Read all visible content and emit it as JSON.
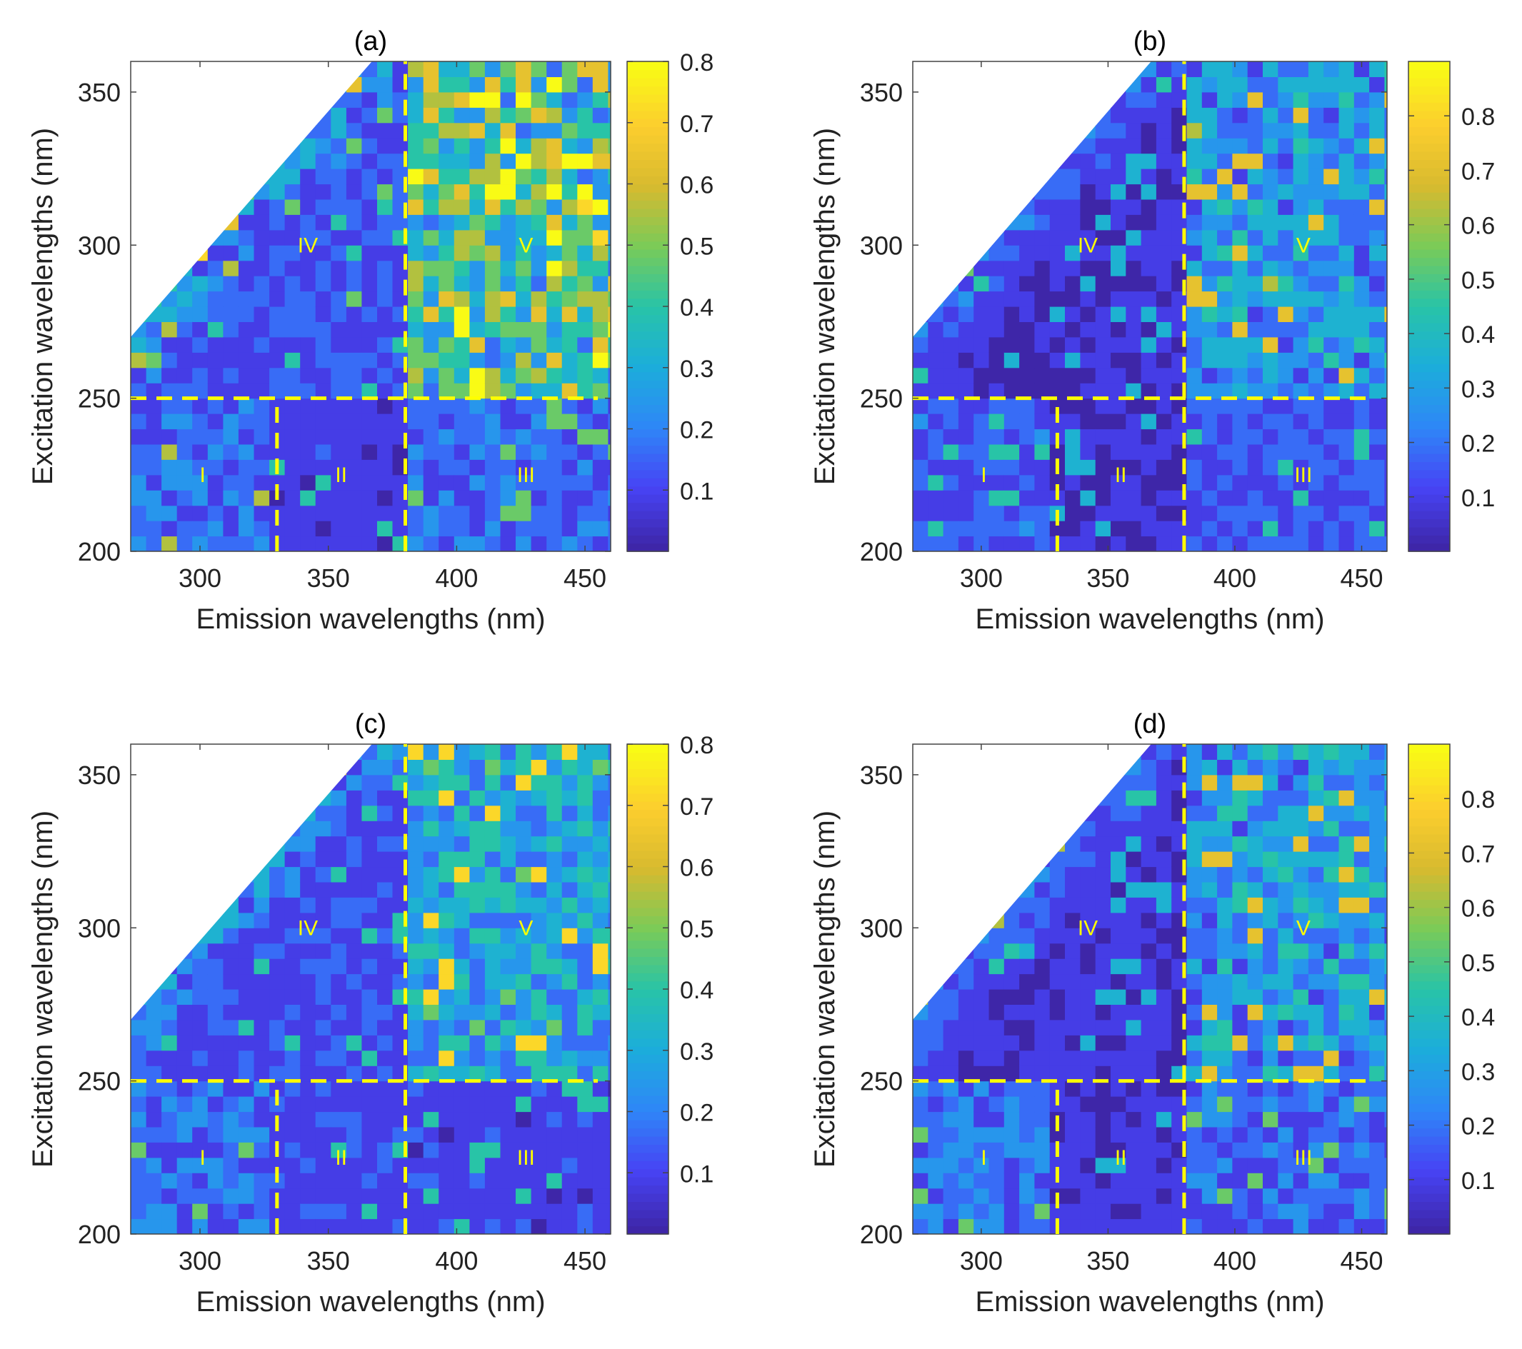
{
  "figure": {
    "x_axis_label": "Emission wavelengths (nm)",
    "y_axis_label": "Excitation wavelengths (nm)",
    "xlim": [
      273,
      460
    ],
    "ylim": [
      200,
      360
    ],
    "x_ticks": [
      300,
      350,
      400,
      450
    ],
    "y_ticks": [
      200,
      250,
      300,
      350
    ],
    "boundary_color": "#FFFF00",
    "contour_line_color": "#000000",
    "colormap": [
      "#3E26A8",
      "#4743F5",
      "#2E87F7",
      "#1CADDB",
      "#28C4A7",
      "#7ACB58",
      "#D7BA2F",
      "#FCCE2E",
      "#F9FB15"
    ]
  },
  "chart_data": [
    {
      "panel": "a",
      "type": "heatmap",
      "title": "(a)",
      "xlabel": "Emission wavelengths (nm)",
      "ylabel": "Excitation wavelengths (nm)",
      "xlim": [
        273,
        460
      ],
      "ylim": [
        200,
        360
      ],
      "colorbar_ticks": [
        "0.1",
        "0.2",
        "0.3",
        "0.4",
        "0.5",
        "0.6",
        "0.7",
        "0.8"
      ],
      "colorbar_range": [
        0,
        0.8
      ],
      "region_labels": [
        {
          "label": "I",
          "em": 301,
          "ex": 225
        },
        {
          "label": "II",
          "em": 355,
          "ex": 225
        },
        {
          "label": "III",
          "em": 427,
          "ex": 225
        },
        {
          "label": "IV",
          "em": 342,
          "ex": 300
        },
        {
          "label": "V",
          "em": 427,
          "ex": 300
        }
      ],
      "boundaries": {
        "ex_split": 250,
        "em_splits_lower": [
          330,
          380
        ],
        "em_split_upper": 380
      },
      "region_mean_intensity": {
        "I": 0.18,
        "II": 0.08,
        "III": 0.16,
        "IV": 0.12,
        "V": 0.45
      }
    },
    {
      "panel": "b",
      "type": "heatmap",
      "title": "(b)",
      "xlabel": "Emission wavelengths (nm)",
      "ylabel": "Excitation wavelengths (nm)",
      "xlim": [
        273,
        460
      ],
      "ylim": [
        200,
        360
      ],
      "colorbar_ticks": [
        "0.1",
        "0.2",
        "0.3",
        "0.4",
        "0.5",
        "0.6",
        "0.7",
        "0.8"
      ],
      "colorbar_range": [
        0,
        0.9
      ],
      "region_labels": [
        {
          "label": "I",
          "em": 301,
          "ex": 225
        },
        {
          "label": "II",
          "em": 355,
          "ex": 225
        },
        {
          "label": "III",
          "em": 427,
          "ex": 225
        },
        {
          "label": "IV",
          "em": 342,
          "ex": 300
        },
        {
          "label": "V",
          "em": 427,
          "ex": 300
        }
      ],
      "boundaries": {
        "ex_split": 250,
        "em_splits_lower": [
          330,
          380
        ],
        "em_split_upper": 380
      },
      "region_mean_intensity": {
        "I": 0.15,
        "II": 0.05,
        "III": 0.14,
        "IV": 0.05,
        "V": 0.28
      }
    },
    {
      "panel": "c",
      "type": "heatmap",
      "title": "(c)",
      "xlabel": "Emission wavelengths (nm)",
      "ylabel": "Excitation wavelengths (nm)",
      "xlim": [
        273,
        460
      ],
      "ylim": [
        200,
        360
      ],
      "colorbar_ticks": [
        "0.1",
        "0.2",
        "0.3",
        "0.4",
        "0.5",
        "0.6",
        "0.7",
        "0.8"
      ],
      "colorbar_range": [
        0,
        0.8
      ],
      "region_labels": [
        {
          "label": "I",
          "em": 301,
          "ex": 225
        },
        {
          "label": "II",
          "em": 355,
          "ex": 225
        },
        {
          "label": "III",
          "em": 427,
          "ex": 225
        },
        {
          "label": "IV",
          "em": 342,
          "ex": 300
        },
        {
          "label": "V",
          "em": 427,
          "ex": 300
        }
      ],
      "boundaries": {
        "ex_split": 250,
        "em_splits_lower": [
          330,
          380
        ],
        "em_split_upper": 380
      },
      "region_mean_intensity": {
        "I": 0.17,
        "II": 0.1,
        "III": 0.09,
        "IV": 0.1,
        "V": 0.3
      }
    },
    {
      "panel": "d",
      "type": "heatmap",
      "title": "(d)",
      "xlabel": "Emission wavelengths (nm)",
      "ylabel": "Excitation wavelengths (nm)",
      "xlim": [
        273,
        460
      ],
      "ylim": [
        200,
        360
      ],
      "colorbar_ticks": [
        "0.1",
        "0.2",
        "0.3",
        "0.4",
        "0.5",
        "0.6",
        "0.7",
        "0.8"
      ],
      "colorbar_range": [
        0,
        0.9
      ],
      "region_labels": [
        {
          "label": "I",
          "em": 301,
          "ex": 225
        },
        {
          "label": "II",
          "em": 355,
          "ex": 225
        },
        {
          "label": "III",
          "em": 427,
          "ex": 225
        },
        {
          "label": "IV",
          "em": 342,
          "ex": 300
        },
        {
          "label": "V",
          "em": 427,
          "ex": 300
        }
      ],
      "boundaries": {
        "ex_split": 250,
        "em_splits_lower": [
          330,
          380
        ],
        "em_split_upper": 380
      },
      "region_mean_intensity": {
        "I": 0.2,
        "II": 0.06,
        "III": 0.18,
        "IV": 0.06,
        "V": 0.3
      }
    }
  ]
}
